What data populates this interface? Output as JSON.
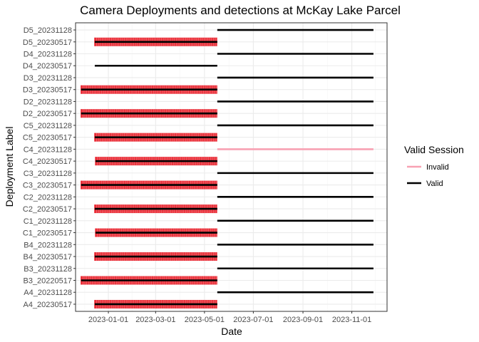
{
  "chart_data": {
    "type": "segment",
    "title": "Camera Deployments and detections at McKay Lake Parcel",
    "xlabel": "Date",
    "ylabel": "Deployment Label",
    "x_range": [
      "2022-11-21",
      "2023-12-15"
    ],
    "x_ticks": [
      "2023-01-01",
      "2023-03-01",
      "2023-05-01",
      "2023-07-01",
      "2023-09-01",
      "2023-11-01"
    ],
    "grid": true,
    "legend": {
      "title": "Valid Session",
      "position": "right",
      "entries": [
        {
          "label": "Invalid",
          "color": "#F8A1B3"
        },
        {
          "label": "Valid",
          "color": "#000000"
        }
      ]
    },
    "colors": {
      "valid": "#000000",
      "invalid": "#F8A1B3",
      "detection": "#E8202A",
      "panel_border": "#333333",
      "grid_major": "#EBEBEB",
      "grid_minor": "#F5F5F5"
    },
    "deployments": [
      {
        "label": "A4_20230517",
        "start": "2022-12-15",
        "end": "2023-05-17",
        "valid": true,
        "detections": [
          "2022-12-15",
          "2023-05-17"
        ]
      },
      {
        "label": "A4_20231128",
        "start": "2023-05-17",
        "end": "2023-11-28",
        "valid": true,
        "detections": []
      },
      {
        "label": "B3_20220517",
        "start": "2022-11-28",
        "end": "2023-05-17",
        "valid": true,
        "detections": [
          "2022-11-28",
          "2023-05-17"
        ]
      },
      {
        "label": "B3_20231128",
        "start": "2023-05-17",
        "end": "2023-11-28",
        "valid": true,
        "detections": []
      },
      {
        "label": "B4_20230517",
        "start": "2022-12-15",
        "end": "2023-05-17",
        "valid": true,
        "detections": [
          "2022-12-15",
          "2023-05-17"
        ]
      },
      {
        "label": "B4_20231128",
        "start": "2023-05-17",
        "end": "2023-11-28",
        "valid": true,
        "detections": []
      },
      {
        "label": "C1_20230517",
        "start": "2022-12-16",
        "end": "2023-05-17",
        "valid": true,
        "detections": [
          "2022-12-16",
          "2023-05-17"
        ]
      },
      {
        "label": "C1_20231128",
        "start": "2023-05-17",
        "end": "2023-11-28",
        "valid": true,
        "detections": []
      },
      {
        "label": "C2_20230517",
        "start": "2022-12-15",
        "end": "2023-05-17",
        "valid": true,
        "detections": [
          "2022-12-15",
          "2023-05-17"
        ]
      },
      {
        "label": "C2_20231128",
        "start": "2023-05-17",
        "end": "2023-11-28",
        "valid": true,
        "detections": []
      },
      {
        "label": "C3_20230517",
        "start": "2022-11-28",
        "end": "2023-05-17",
        "valid": true,
        "detections": [
          "2022-11-28",
          "2023-05-17"
        ]
      },
      {
        "label": "C3_20231128",
        "start": "2023-05-17",
        "end": "2023-11-28",
        "valid": true,
        "detections": []
      },
      {
        "label": "C4_20230517",
        "start": "2022-12-16",
        "end": "2023-05-17",
        "valid": true,
        "detections": [
          "2022-12-16",
          "2023-05-17"
        ]
      },
      {
        "label": "C4_20231128",
        "start": "2023-05-17",
        "end": "2023-11-28",
        "valid": false,
        "detections": []
      },
      {
        "label": "C5_20230517",
        "start": "2022-12-15",
        "end": "2023-05-17",
        "valid": true,
        "detections": [
          "2022-12-15",
          "2023-05-17"
        ]
      },
      {
        "label": "C5_20231128",
        "start": "2023-05-17",
        "end": "2023-11-28",
        "valid": true,
        "detections": []
      },
      {
        "label": "D2_20230517",
        "start": "2022-11-28",
        "end": "2023-05-17",
        "valid": true,
        "detections": [
          "2022-11-28",
          "2023-05-17"
        ]
      },
      {
        "label": "D2_20231128",
        "start": "2023-05-17",
        "end": "2023-11-28",
        "valid": true,
        "detections": []
      },
      {
        "label": "D3_20230517",
        "start": "2022-11-28",
        "end": "2023-05-17",
        "valid": true,
        "detections": [
          "2022-11-28",
          "2023-05-17"
        ]
      },
      {
        "label": "D3_20231128",
        "start": "2023-05-17",
        "end": "2023-11-28",
        "valid": true,
        "detections": []
      },
      {
        "label": "D4_20230517",
        "start": "2022-12-15",
        "end": "2023-05-17",
        "valid": true,
        "detections": []
      },
      {
        "label": "D4_20231128",
        "start": "2023-05-17",
        "end": "2023-11-28",
        "valid": true,
        "detections": []
      },
      {
        "label": "D5_20230517",
        "start": "2022-12-15",
        "end": "2023-05-17",
        "valid": true,
        "detections": [
          "2022-12-15",
          "2023-05-17"
        ]
      },
      {
        "label": "D5_20231128",
        "start": "2023-05-17",
        "end": "2023-11-28",
        "valid": true,
        "detections": []
      }
    ]
  }
}
